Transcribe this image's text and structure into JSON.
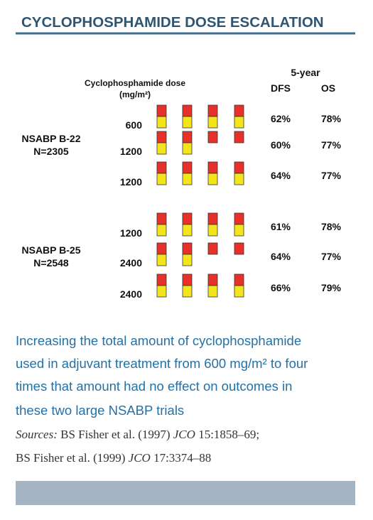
{
  "title": "CYCLOPHOSPHAMIDE DOSE ESCALATION",
  "header": {
    "dose": "Cyclophosphamide dose",
    "unit": "(mg/m²)",
    "period": "5-year",
    "dfs": "DFS",
    "os": "OS"
  },
  "trials": [
    {
      "name": "NSABP B-22",
      "n": "N=2305",
      "rows": [
        {
          "dose": "600",
          "dfs": "62%",
          "os": "78%"
        },
        {
          "dose": "1200",
          "dfs": "60%",
          "os": "77%"
        },
        {
          "dose": "1200",
          "dfs": "64%",
          "os": "77%"
        }
      ]
    },
    {
      "name": "NSABP B-25",
      "n": "N=2548",
      "rows": [
        {
          "dose": "1200",
          "dfs": "61%",
          "os": "78%"
        },
        {
          "dose": "2400",
          "dfs": "64%",
          "os": "77%"
        },
        {
          "dose": "2400",
          "dfs": "66%",
          "os": "79%"
        }
      ]
    }
  ],
  "caption": [
    "Increasing the total amount of cyclophosphamide",
    "used in adjuvant treatment from 600 mg/m² to four",
    "times that amount had no effect on outcomes in",
    "these two large NSABP trials"
  ],
  "sources": [
    [
      "Sources:",
      " BS Fisher et al. (1997) ",
      "JCO",
      " 15:1858–69;"
    ],
    [
      "BS Fisher et al. (1999) ",
      "JCO",
      " 17:3374–88"
    ]
  ]
}
